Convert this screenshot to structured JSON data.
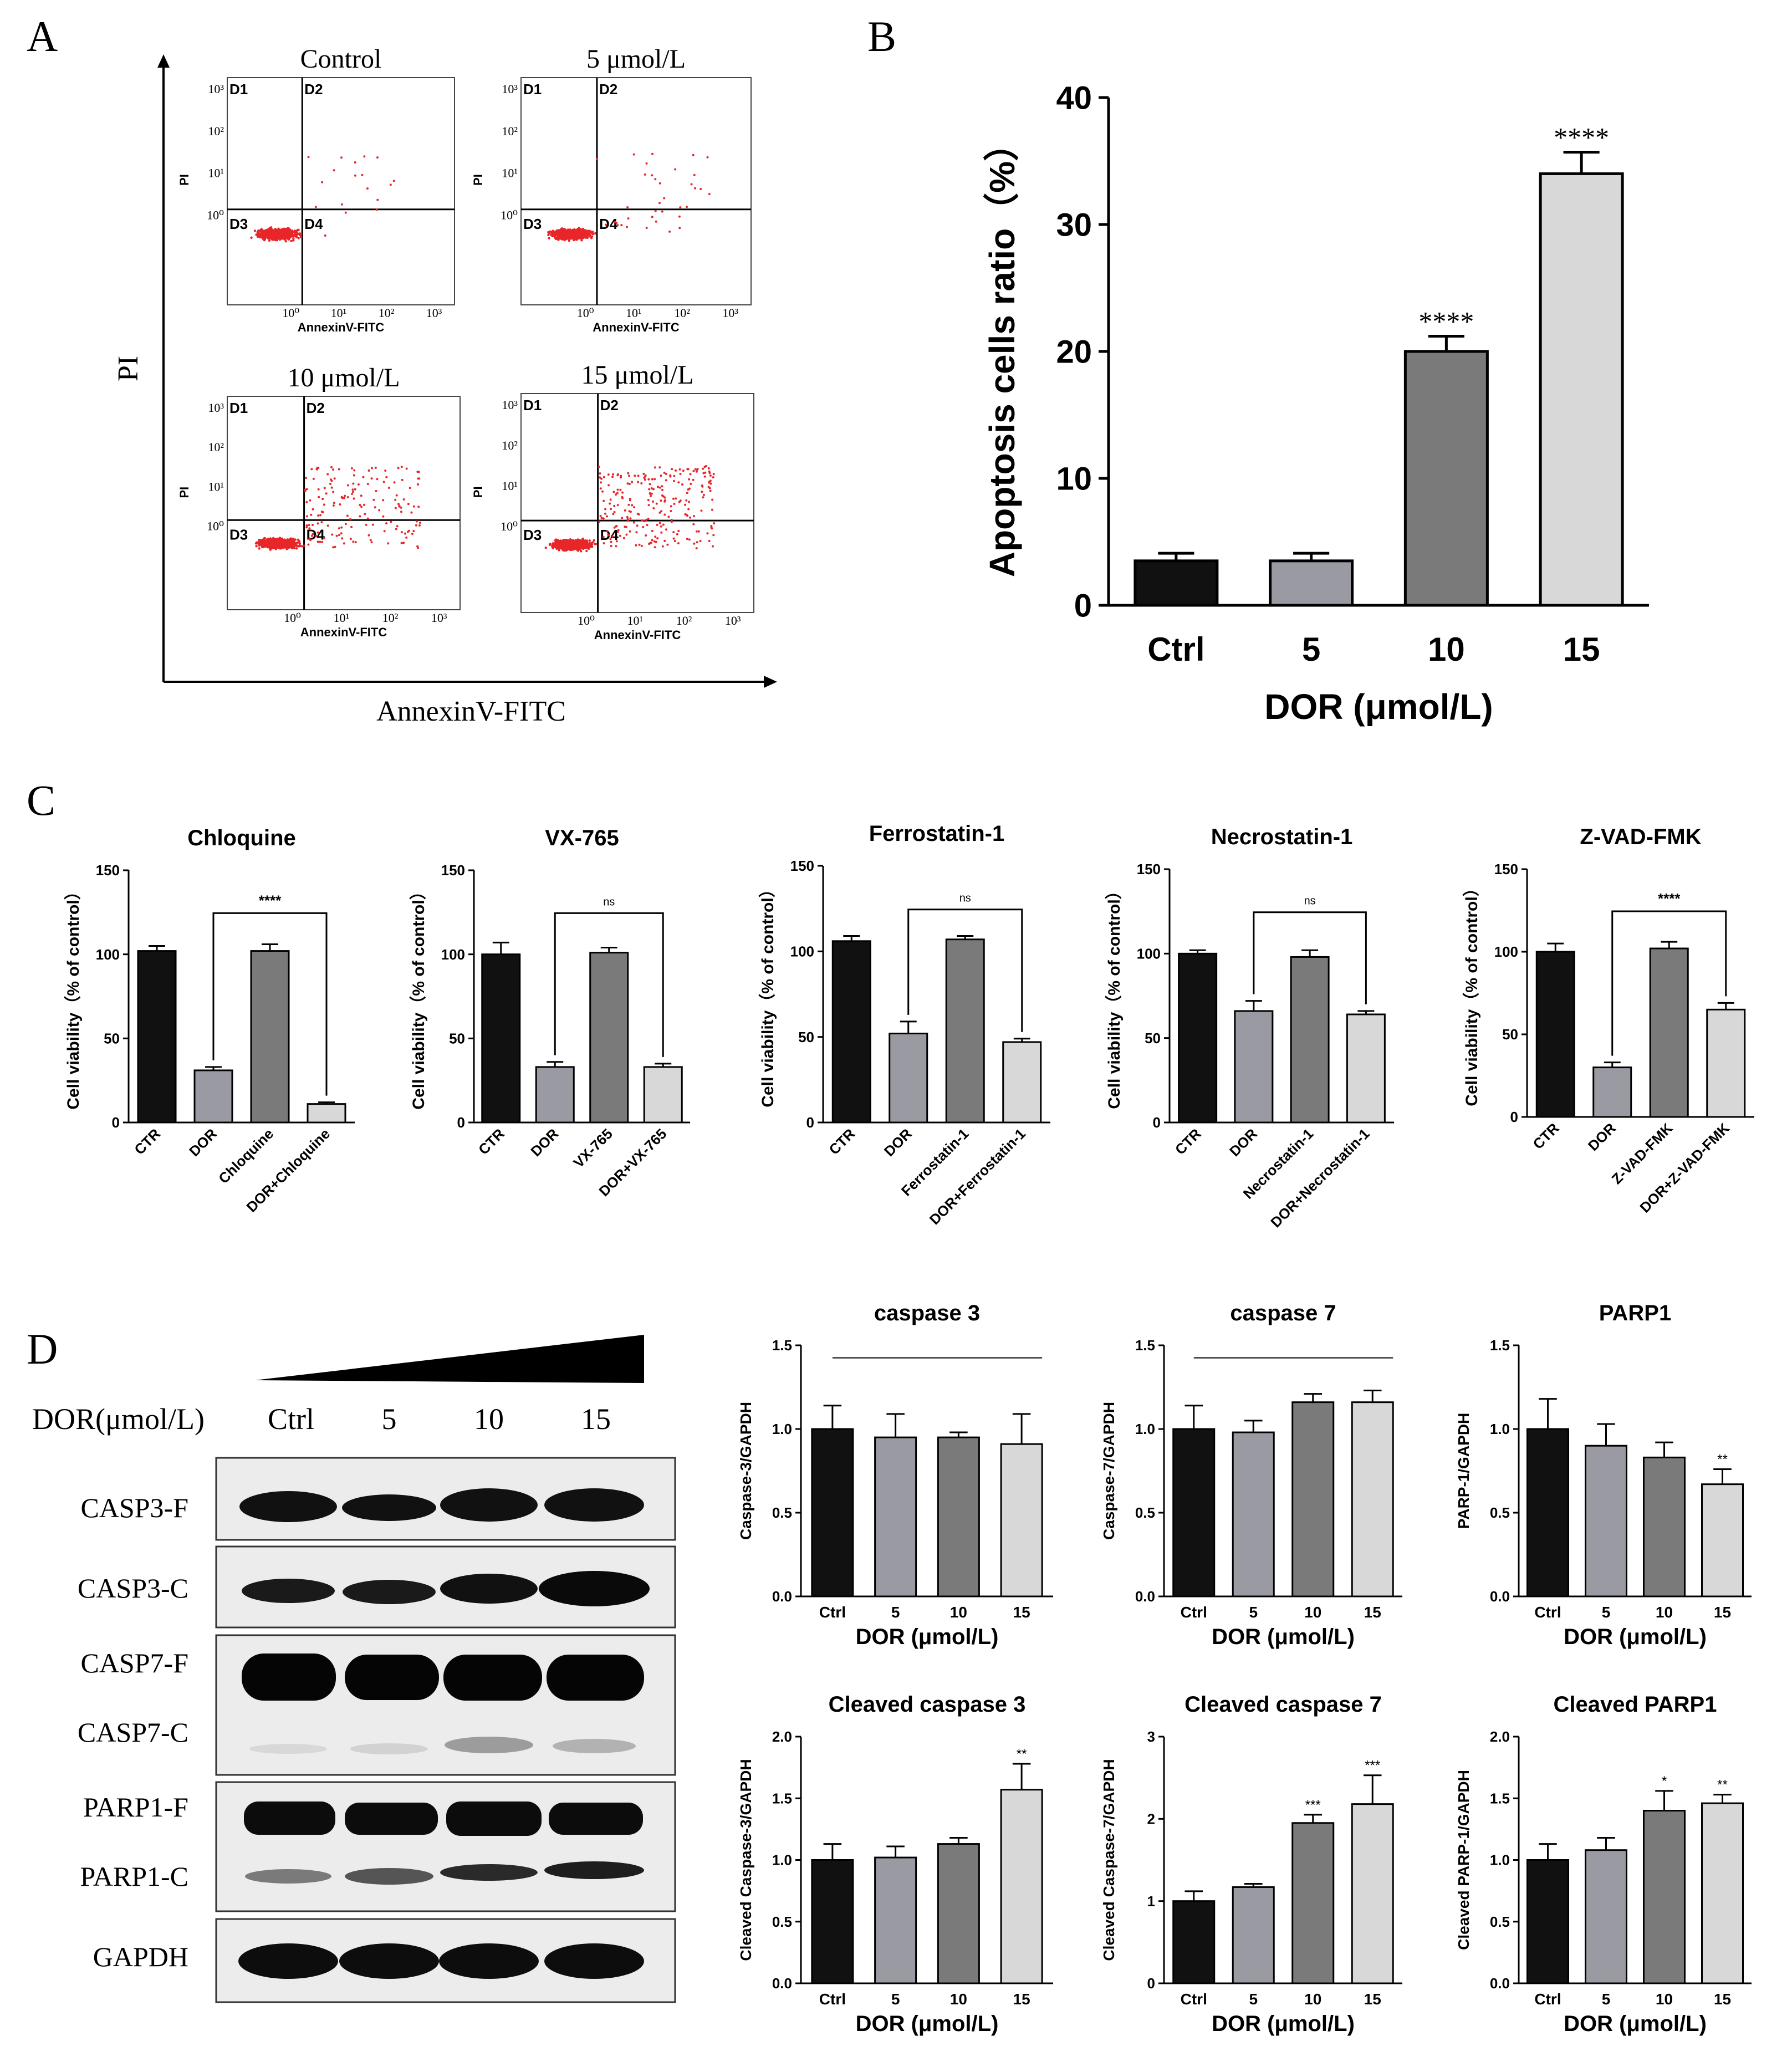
{
  "panel_labels": {
    "A": "A",
    "B": "B",
    "C": "C",
    "D": "D"
  },
  "panelA": {
    "outer_y": "PI",
    "outer_x": "AnnexinV-FITC",
    "plots": [
      {
        "title": "Control",
        "xlabel": "AnnexinV-FITC",
        "ylabel": "PI"
      },
      {
        "title": "5 μmol/L",
        "xlabel": "AnnexinV-FITC",
        "ylabel": "PI"
      },
      {
        "title": "10 μmol/L",
        "xlabel": "AnnexinV-FITC",
        "ylabel": "PI"
      },
      {
        "title": "15 μmol/L",
        "xlabel": "AnnexinV-FITC",
        "ylabel": "PI"
      }
    ],
    "quadrants": [
      "D1",
      "D2",
      "D3",
      "D4"
    ],
    "dot_color": "#e8262a"
  },
  "panelD_blot": {
    "dose_label": "DOR(μmol/L)",
    "lanes": [
      "Ctrl",
      "5",
      "10",
      "15"
    ],
    "rows": [
      "CASP3-F",
      "CASP3-C",
      "CASP7-F",
      "CASP7-C",
      "PARP1-F",
      "PARP1-C",
      "GAPDH"
    ]
  },
  "chart_data": [
    {
      "id": "B",
      "type": "bar",
      "title": "",
      "xlabel": "DOR (μmol/L)",
      "ylabel": "Apoptosis cells ratio（%）",
      "categories": [
        "Ctrl",
        "5",
        "10",
        "15"
      ],
      "values": [
        3.5,
        3.5,
        20.0,
        34.0
      ],
      "errors": [
        0.6,
        0.6,
        1.2,
        1.7
      ],
      "significance": [
        "",
        "",
        "****",
        "****"
      ],
      "ylim": [
        0,
        40
      ],
      "yticks": [
        "0",
        "10",
        "20",
        "30",
        "40"
      ],
      "colors": [
        "#111111",
        "#9a9aa2",
        "#7a7a7a",
        "#d8d8d8"
      ]
    },
    {
      "id": "C1",
      "type": "bar",
      "title": "Chloquine",
      "xlabel": "",
      "ylabel": "Cell viability（% of control）",
      "categories": [
        "CTR",
        "DOR",
        "Chloquine",
        "DOR+Chloquine"
      ],
      "values": [
        102,
        31,
        102,
        11
      ],
      "errors": [
        3,
        2,
        4,
        1
      ],
      "bracket": {
        "from": 1,
        "to": 3,
        "label": "****"
      },
      "ylim": [
        0,
        150
      ],
      "yticks": [
        "0",
        "50",
        "100",
        "150"
      ],
      "colors": [
        "#111111",
        "#9a9aa2",
        "#7a7a7a",
        "#d8d8d8"
      ]
    },
    {
      "id": "C2",
      "type": "bar",
      "title": "VX-765",
      "xlabel": "",
      "ylabel": "Cell viability（% of control）",
      "categories": [
        "CTR",
        "DOR",
        "VX-765",
        "DOR+VX-765"
      ],
      "values": [
        100,
        33,
        101,
        33
      ],
      "errors": [
        7,
        3,
        3,
        2
      ],
      "bracket": {
        "from": 1,
        "to": 3,
        "label": "ns"
      },
      "ylim": [
        0,
        150
      ],
      "yticks": [
        "0",
        "50",
        "100",
        "150"
      ],
      "colors": [
        "#111111",
        "#9a9aa2",
        "#7a7a7a",
        "#d8d8d8"
      ]
    },
    {
      "id": "C3",
      "type": "bar",
      "title": "Ferrostatin-1",
      "xlabel": "",
      "ylabel": "Cell viability（% of control）",
      "categories": [
        "CTR",
        "DOR",
        "Ferrostatin-1",
        "DOR+Ferrostatin-1"
      ],
      "values": [
        106,
        52,
        107,
        47
      ],
      "errors": [
        3,
        7,
        2,
        2
      ],
      "bracket": {
        "from": 1,
        "to": 3,
        "label": "ns"
      },
      "ylim": [
        0,
        150
      ],
      "yticks": [
        "0",
        "50",
        "100",
        "150"
      ],
      "colors": [
        "#111111",
        "#9a9aa2",
        "#7a7a7a",
        "#d8d8d8"
      ]
    },
    {
      "id": "C4",
      "type": "bar",
      "title": "Necrostatin-1",
      "xlabel": "",
      "ylabel": "Cell viability（% of control）",
      "categories": [
        "CTR",
        "DOR",
        "Necrostatin-1",
        "DOR+Necrostatin-1"
      ],
      "values": [
        100,
        66,
        98,
        64
      ],
      "errors": [
        2,
        6,
        4,
        2
      ],
      "bracket": {
        "from": 1,
        "to": 3,
        "label": "ns"
      },
      "ylim": [
        0,
        150
      ],
      "yticks": [
        "0",
        "50",
        "100",
        "150"
      ],
      "colors": [
        "#111111",
        "#9a9aa2",
        "#7a7a7a",
        "#d8d8d8"
      ]
    },
    {
      "id": "C5",
      "type": "bar",
      "title": "Z-VAD-FMK",
      "xlabel": "",
      "ylabel": "Cell viability（% of control）",
      "categories": [
        "CTR",
        "DOR",
        "Z-VAD-FMK",
        "DOR+Z-VAD-FMK"
      ],
      "values": [
        100,
        30,
        102,
        65
      ],
      "errors": [
        5,
        3,
        4,
        4
      ],
      "bracket": {
        "from": 1,
        "to": 3,
        "label": "****"
      },
      "ylim": [
        0,
        150
      ],
      "yticks": [
        "0",
        "50",
        "100",
        "150"
      ],
      "colors": [
        "#111111",
        "#9a9aa2",
        "#7a7a7a",
        "#d8d8d8"
      ]
    },
    {
      "id": "D1",
      "type": "bar",
      "title": "caspase 3",
      "xlabel": "DOR (μmol/L)",
      "ylabel": "Caspase-3/GAPDH",
      "categories": [
        "Ctrl",
        "5",
        "10",
        "15"
      ],
      "values": [
        1.0,
        0.95,
        0.95,
        0.91
      ],
      "errors": [
        0.14,
        0.14,
        0.03,
        0.18
      ],
      "significance": [
        "",
        "",
        "",
        ""
      ],
      "topline": true,
      "ylim": [
        0,
        1.5
      ],
      "yticks": [
        "0.0",
        "0.5",
        "1.0",
        "1.5"
      ],
      "colors": [
        "#111111",
        "#9a9aa2",
        "#7a7a7a",
        "#d8d8d8"
      ]
    },
    {
      "id": "D2",
      "type": "bar",
      "title": "caspase 7",
      "xlabel": "DOR (μmol/L)",
      "ylabel": "Caspase-7/GAPDH",
      "categories": [
        "Ctrl",
        "5",
        "10",
        "15"
      ],
      "values": [
        1.0,
        0.98,
        1.16,
        1.16
      ],
      "errors": [
        0.14,
        0.07,
        0.05,
        0.07
      ],
      "significance": [
        "",
        "",
        "",
        ""
      ],
      "topline": true,
      "ylim": [
        0,
        1.5
      ],
      "yticks": [
        "0.0",
        "0.5",
        "1.0",
        "1.5"
      ],
      "colors": [
        "#111111",
        "#9a9aa2",
        "#7a7a7a",
        "#d8d8d8"
      ]
    },
    {
      "id": "D3",
      "type": "bar",
      "title": "PARP1",
      "xlabel": "DOR (μmol/L)",
      "ylabel": "PARP-1/GAPDH",
      "categories": [
        "Ctrl",
        "5",
        "10",
        "15"
      ],
      "values": [
        1.0,
        0.9,
        0.83,
        0.67
      ],
      "errors": [
        0.18,
        0.13,
        0.09,
        0.09
      ],
      "significance": [
        "",
        "",
        "",
        "**"
      ],
      "ylim": [
        0,
        1.5
      ],
      "yticks": [
        "0.0",
        "0.5",
        "1.0",
        "1.5"
      ],
      "colors": [
        "#111111",
        "#9a9aa2",
        "#7a7a7a",
        "#d8d8d8"
      ]
    },
    {
      "id": "D4",
      "type": "bar",
      "title": "Cleaved caspase 3",
      "xlabel": "DOR (μmol/L)",
      "ylabel": "Cleaved Caspase-3/GAPDH",
      "categories": [
        "Ctrl",
        "5",
        "10",
        "15"
      ],
      "values": [
        1.0,
        1.02,
        1.13,
        1.57
      ],
      "errors": [
        0.13,
        0.09,
        0.05,
        0.21
      ],
      "significance": [
        "",
        "",
        "",
        "**"
      ],
      "ylim": [
        0,
        2.0
      ],
      "yticks": [
        "0.0",
        "0.5",
        "1.0",
        "1.5",
        "2.0"
      ],
      "colors": [
        "#111111",
        "#9a9aa2",
        "#7a7a7a",
        "#d8d8d8"
      ]
    },
    {
      "id": "D5",
      "type": "bar",
      "title": "Cleaved caspase 7",
      "xlabel": "DOR (μmol/L)",
      "ylabel": "Cleaved Caspase-7/GAPDH",
      "categories": [
        "Ctrl",
        "5",
        "10",
        "15"
      ],
      "values": [
        1.0,
        1.17,
        1.95,
        2.18
      ],
      "errors": [
        0.12,
        0.04,
        0.1,
        0.35
      ],
      "significance": [
        "",
        "",
        "***",
        "***"
      ],
      "ylim": [
        0,
        3
      ],
      "yticks": [
        "0",
        "1",
        "2",
        "3"
      ],
      "colors": [
        "#111111",
        "#9a9aa2",
        "#7a7a7a",
        "#d8d8d8"
      ]
    },
    {
      "id": "D6",
      "type": "bar",
      "title": "Cleaved PARP1",
      "xlabel": "DOR (μmol/L)",
      "ylabel": "Cleaved PARP-1/GAPDH",
      "categories": [
        "Ctrl",
        "5",
        "10",
        "15"
      ],
      "values": [
        1.0,
        1.08,
        1.4,
        1.46
      ],
      "errors": [
        0.13,
        0.1,
        0.16,
        0.07
      ],
      "significance": [
        "",
        "",
        "*",
        "**"
      ],
      "ylim": [
        0,
        2.0
      ],
      "yticks": [
        "0.0",
        "0.5",
        "1.0",
        "1.5",
        "2.0"
      ],
      "colors": [
        "#111111",
        "#9a9aa2",
        "#7a7a7a",
        "#d8d8d8"
      ]
    }
  ]
}
